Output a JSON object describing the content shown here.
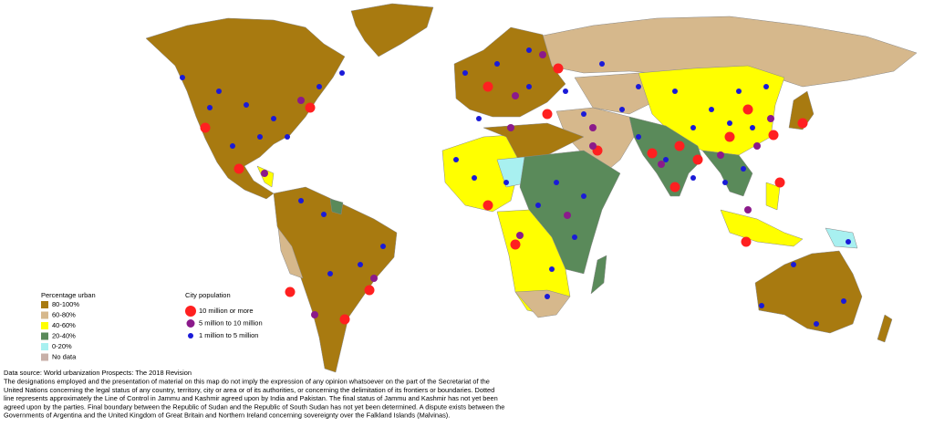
{
  "legend_urban": {
    "title": "Percentage urban",
    "items": [
      {
        "label": "80-100%",
        "color": "#a87a10"
      },
      {
        "label": "60-80%",
        "color": "#d6b88c"
      },
      {
        "label": "40-60%",
        "color": "#ffff00"
      },
      {
        "label": "20-40%",
        "color": "#5a8a5a"
      },
      {
        "label": "0-20%",
        "color": "#a8f0f0"
      },
      {
        "label": "No data",
        "color": "#c8b0a8"
      }
    ]
  },
  "legend_population": {
    "title": "City population",
    "items": [
      {
        "label": "10 million or more",
        "color": "#ff2020"
      },
      {
        "label": "5 million to 10 million",
        "color": "#8b1a8b"
      },
      {
        "label": "1 million to 5 million",
        "color": "#1a1ad8"
      }
    ]
  },
  "source": "Data source: World urbanization Prospects: The 2018 Revision",
  "disclaimer": [
    "The designations employed and the presentation of material on this map do not imply the expression of any opinion whatsoever on the part of the Secretariat of the",
    "United Nations concerning the legal status of any country, territory, city or area or of its authorities, or concerning the delimitation of its frontiers or boundaries. Dotted",
    "line represents approximately the Line of Control in Jammu and Kashmir agreed upon by India and Pakistan. The final status of Jammu and Kashmir has not yet been",
    "agreed upon by the parties. Final boundary between the Republic of Sudan and the Republic of South Sudan has not yet been determined. A dispute exists between the",
    "Governments of Argentina and the United Kingdom of Great Britain and Northern Ireland concerning sovereignty over the Falkland Islands (Malvinas)."
  ]
}
